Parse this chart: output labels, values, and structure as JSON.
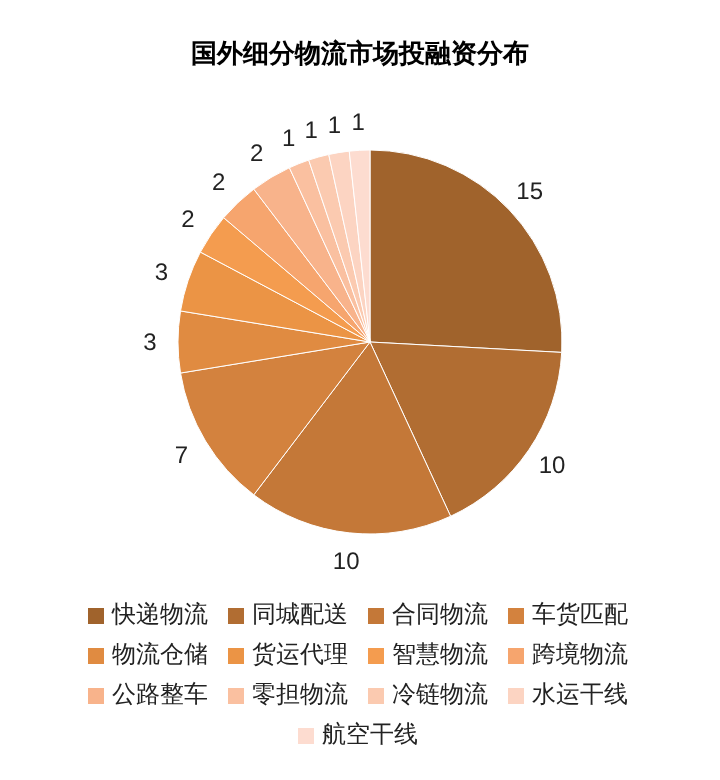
{
  "chart_data": {
    "type": "pie",
    "title": "国外细分物流市场投融资分布",
    "categories": [
      "快递物流",
      "同城配送",
      "合同物流",
      "车货匹配",
      "物流仓储",
      "货运代理",
      "智慧物流",
      "跨境物流",
      "公路整车",
      "零担物流",
      "冷链物流",
      "水运干线",
      "航空干线"
    ],
    "values": [
      15,
      10,
      10,
      7,
      3,
      3,
      2,
      2,
      2,
      1,
      1,
      1,
      1
    ],
    "colors": [
      "#a0632c",
      "#b16d32",
      "#c47838",
      "#d3823e",
      "#e08b41",
      "#eb9445",
      "#f49c4f",
      "#f6a56e",
      "#f8b38b",
      "#fac0a0",
      "#fbcab0",
      "#fcd4c2",
      "#fddcd0"
    ],
    "data_labels": true,
    "legend": "bottom"
  }
}
